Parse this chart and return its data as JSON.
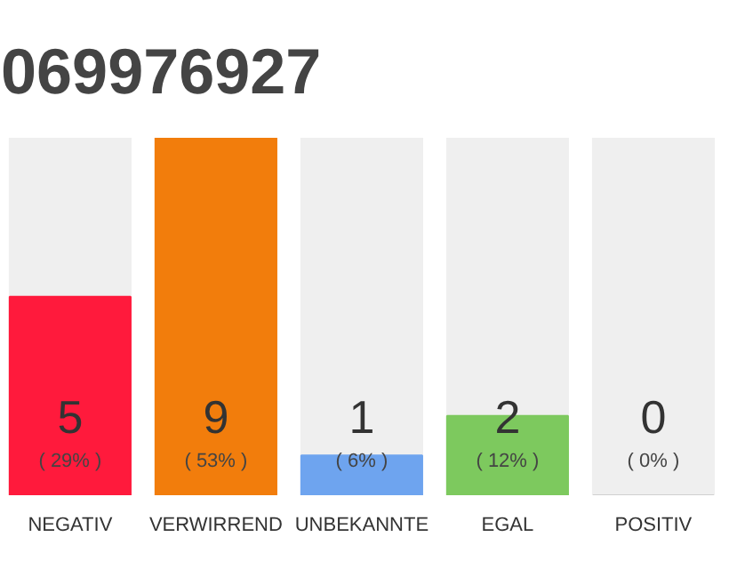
{
  "chart_data": {
    "type": "bar",
    "title": "069976927",
    "categories": [
      "NEGATIV",
      "VERWIRREND",
      "UNBEKANNTE",
      "EGAL",
      "POSITIV"
    ],
    "values": [
      5,
      9,
      1,
      2,
      0
    ],
    "colors": [
      "#ff1a3c",
      "#f27d0c",
      "#6ea4ef",
      "#7dc95e",
      "#d0d0d0"
    ],
    "data_labels": true,
    "annotations": [
      "( 29% )",
      "( 53% )",
      "( 6% )",
      "( 12% )",
      "( 0% )"
    ],
    "grid": false
  }
}
